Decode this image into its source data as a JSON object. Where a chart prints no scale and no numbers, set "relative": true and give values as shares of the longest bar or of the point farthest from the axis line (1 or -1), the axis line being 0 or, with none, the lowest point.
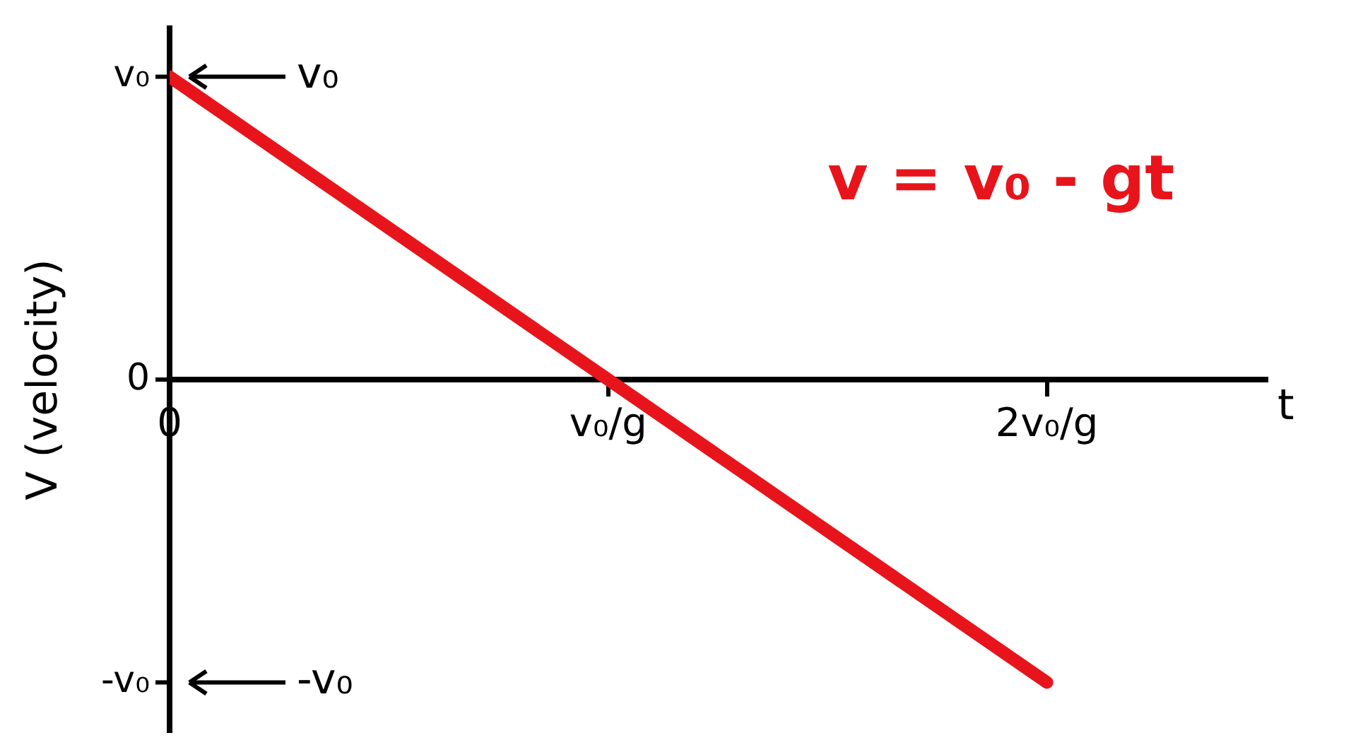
{
  "chart_data": {
    "type": "line",
    "xlabel": "t",
    "ylabel": "V (velocity)",
    "x": [
      0,
      2
    ],
    "values": [
      1,
      -1
    ],
    "color": "#e8141b",
    "relative": true,
    "xlim": [
      0,
      2.5
    ],
    "xticks": [
      {
        "value": 0,
        "label": "0"
      },
      {
        "value": 1,
        "label": "v₀/g"
      },
      {
        "value": 2,
        "label": "2v₀/g"
      }
    ],
    "grid": false,
    "legend": false,
    "marker": "none",
    "line_style": "solid",
    "annotations": [
      "v = v₀ - gt",
      "v₀",
      "v₀",
      "0",
      "-v₀",
      "-v₀"
    ]
  }
}
